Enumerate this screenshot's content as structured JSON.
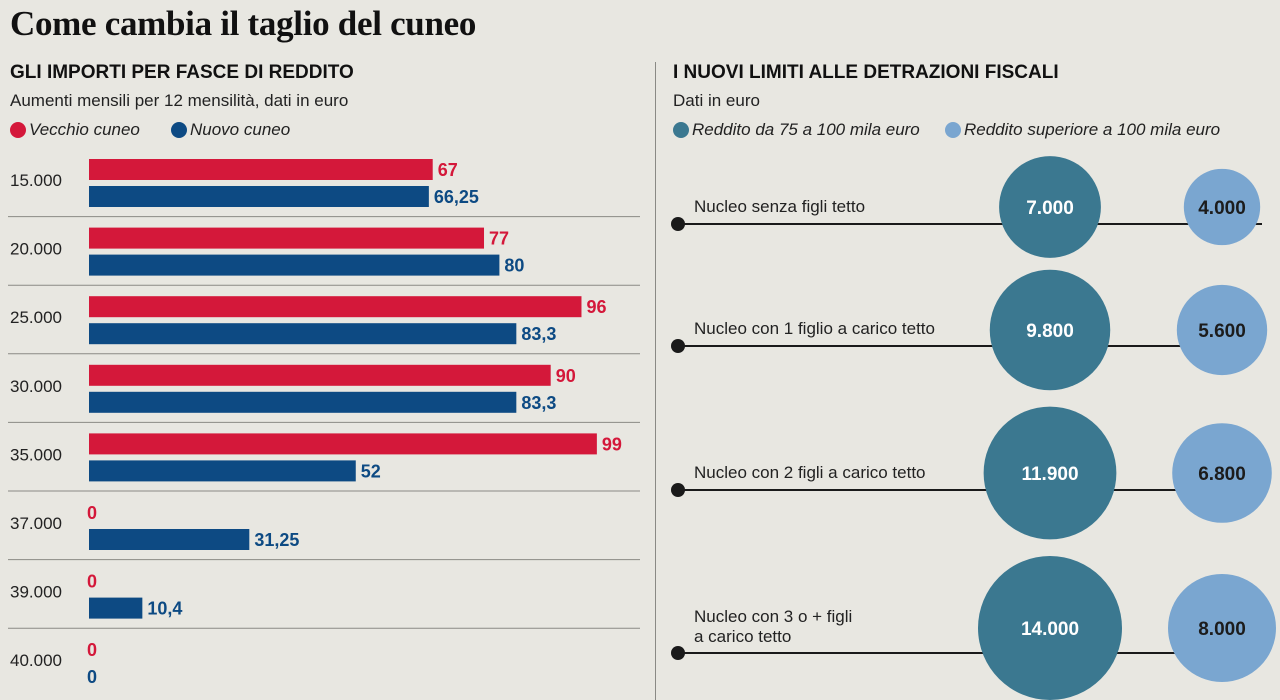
{
  "title": "Come cambia il taglio del cuneo",
  "left": {
    "heading": "GLI IMPORTI PER FASCE DI REDDITO",
    "subheading": "Aumenti mensili per 12 mensilità, dati in euro"
  },
  "right": {
    "heading": "I NUOVI LIMITI ALLE DETRAZIONI FISCALI",
    "subheading": "Dati in euro"
  },
  "colors": {
    "old": "#d4183a",
    "new": "#0d4a83",
    "mid_income": "#3b7890",
    "high_income": "#7aa6d0",
    "rule": "#8a8a85",
    "background": "#e8e7e1"
  },
  "chart_data": [
    {
      "type": "bar",
      "orientation": "horizontal",
      "categories": [
        "15.000",
        "20.000",
        "25.000",
        "30.000",
        "35.000",
        "37.000",
        "39.000",
        "40.000"
      ],
      "series": [
        {
          "name": "Vecchio cuneo",
          "values": [
            67,
            77,
            96,
            90,
            99,
            0,
            0,
            0
          ],
          "labels": [
            "67",
            "77",
            "96",
            "90",
            "99",
            "0",
            "0",
            "0"
          ]
        },
        {
          "name": "Nuovo cuneo",
          "values": [
            66.25,
            80,
            83.3,
            83.3,
            52,
            31.25,
            10.4,
            0
          ],
          "labels": [
            "66,25",
            "80",
            "83,3",
            "83,3",
            "52",
            "31,25",
            "10,4",
            "0"
          ]
        }
      ],
      "xlim": [
        0,
        100
      ],
      "legend": "top-left",
      "grid": false
    },
    {
      "type": "bubble",
      "categories": [
        "Nucleo senza figli tetto",
        "Nucleo con 1 figlio a carico tetto",
        "Nucleo con 2 figli a carico tetto",
        "Nucleo con 3 o + figli a carico tetto"
      ],
      "category_lines": [
        [
          "Nucleo senza figli tetto"
        ],
        [
          "Nucleo con 1 figlio a carico tetto"
        ],
        [
          "Nucleo con 2 figli a carico tetto"
        ],
        [
          "Nucleo con 3 o + figli",
          "a carico tetto"
        ]
      ],
      "series": [
        {
          "name": "Reddito da 75 a 100 mila euro",
          "values": [
            7000,
            9800,
            11900,
            14000
          ],
          "labels": [
            "7.000",
            "9.800",
            "11.900",
            "14.000"
          ]
        },
        {
          "name": "Reddito superiore a 100 mila euro",
          "values": [
            4000,
            5600,
            6800,
            8000
          ],
          "labels": [
            "4.000",
            "5.600",
            "6.800",
            "8.000"
          ]
        }
      ],
      "legend": "top-left"
    }
  ]
}
